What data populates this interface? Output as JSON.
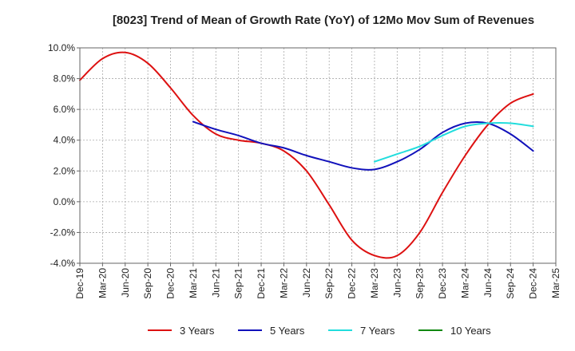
{
  "chart_data": {
    "type": "line",
    "title": "[8023]  Trend of Mean of Growth Rate (YoY) of 12Mo Mov Sum of Revenues",
    "xlabel": "",
    "ylabel": "",
    "ylim": [
      -4.0,
      10.0
    ],
    "yticks": [
      -4.0,
      -2.0,
      0.0,
      2.0,
      4.0,
      6.0,
      8.0,
      10.0
    ],
    "ytick_labels": [
      "-4.0%",
      "-2.0%",
      "0.0%",
      "2.0%",
      "4.0%",
      "6.0%",
      "8.0%",
      "10.0%"
    ],
    "x_labels": [
      "Dec-19",
      "Mar-20",
      "Jun-20",
      "Sep-20",
      "Dec-20",
      "Mar-21",
      "Jun-21",
      "Sep-21",
      "Dec-21",
      "Mar-22",
      "Jun-22",
      "Sep-22",
      "Dec-22",
      "Mar-23",
      "Jun-23",
      "Sep-23",
      "Dec-23",
      "Mar-24",
      "Jun-24",
      "Sep-24",
      "Dec-24",
      "Mar-25"
    ],
    "grid": true,
    "legend_position": "bottom",
    "series": [
      {
        "name": "3 Years",
        "color": "#dd1111",
        "points": [
          [
            0,
            7.9
          ],
          [
            1,
            9.3
          ],
          [
            2,
            9.7
          ],
          [
            3,
            9.0
          ],
          [
            4,
            7.4
          ],
          [
            5,
            5.6
          ],
          [
            6,
            4.4
          ],
          [
            7,
            4.0
          ],
          [
            8,
            3.8
          ],
          [
            9,
            3.3
          ],
          [
            10,
            2.0
          ],
          [
            11,
            -0.2
          ],
          [
            12,
            -2.5
          ],
          [
            13,
            -3.5
          ],
          [
            14,
            -3.5
          ],
          [
            15,
            -2.0
          ],
          [
            16,
            0.6
          ],
          [
            17,
            3.0
          ],
          [
            18,
            5.0
          ],
          [
            19,
            6.4
          ],
          [
            20,
            7.0
          ]
        ]
      },
      {
        "name": "5 Years",
        "color": "#1111bb",
        "points": [
          [
            5,
            5.2
          ],
          [
            6,
            4.7
          ],
          [
            7,
            4.3
          ],
          [
            8,
            3.8
          ],
          [
            9,
            3.5
          ],
          [
            10,
            3.0
          ],
          [
            11,
            2.6
          ],
          [
            12,
            2.2
          ],
          [
            13,
            2.1
          ],
          [
            14,
            2.6
          ],
          [
            15,
            3.4
          ],
          [
            16,
            4.5
          ],
          [
            17,
            5.1
          ],
          [
            18,
            5.1
          ],
          [
            19,
            4.4
          ],
          [
            20,
            3.3
          ]
        ]
      },
      {
        "name": "7 Years",
        "color": "#22dddd",
        "points": [
          [
            13,
            2.6
          ],
          [
            14,
            3.1
          ],
          [
            15,
            3.6
          ],
          [
            16,
            4.3
          ],
          [
            17,
            4.9
          ],
          [
            18,
            5.1
          ],
          [
            19,
            5.1
          ],
          [
            20,
            4.9
          ]
        ]
      },
      {
        "name": "10 Years",
        "color": "#118811",
        "points": []
      }
    ]
  }
}
